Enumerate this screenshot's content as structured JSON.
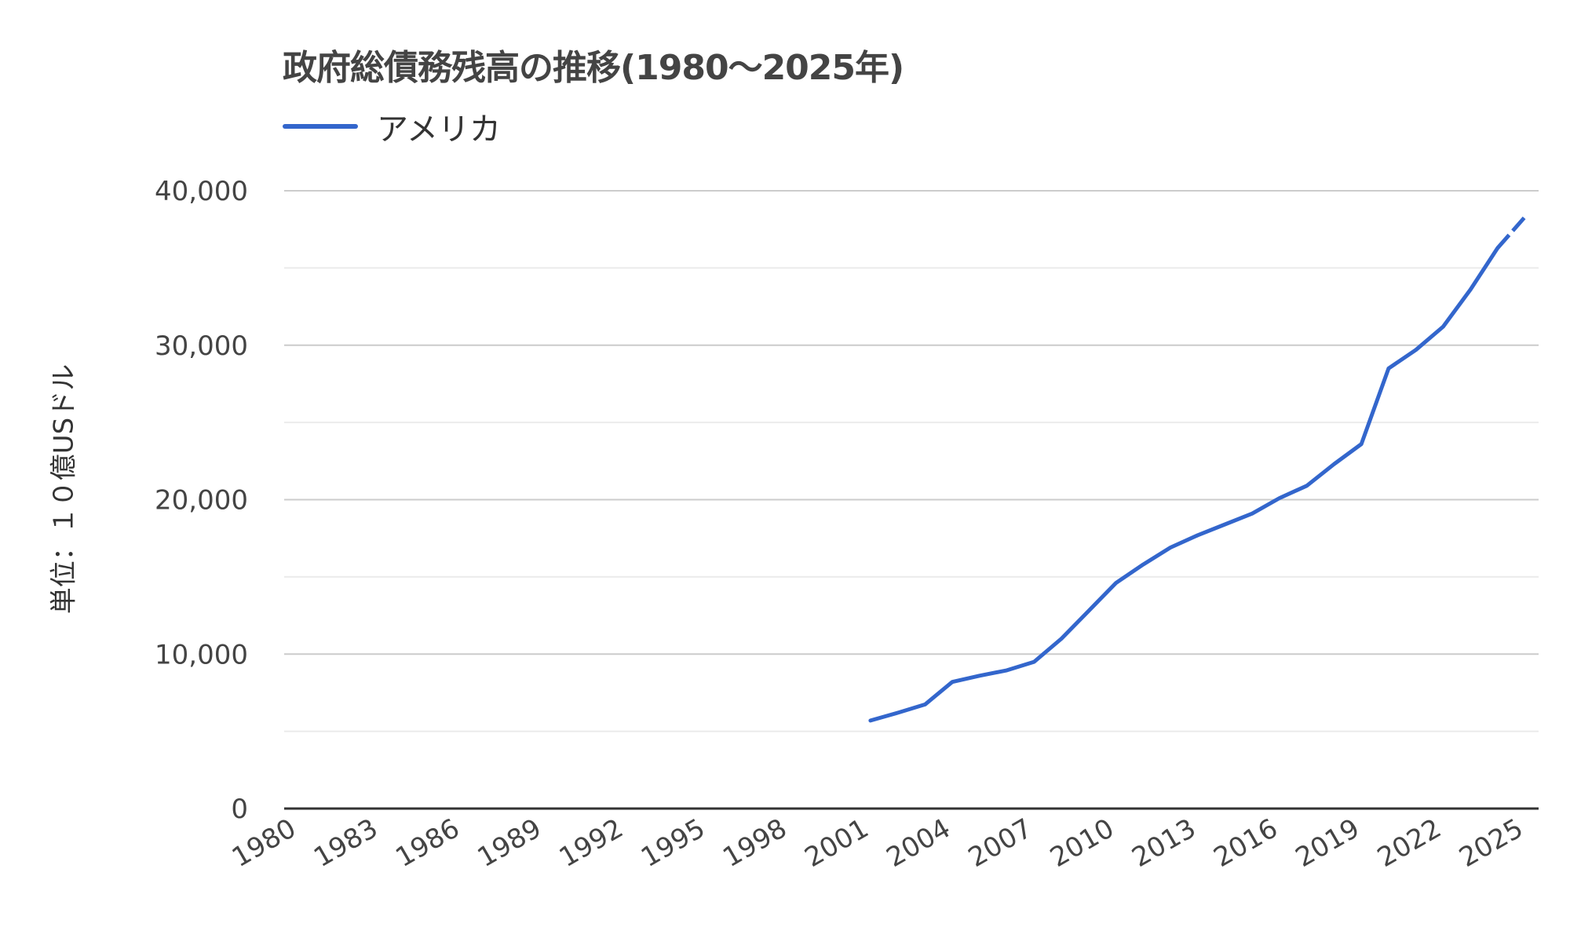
{
  "chart": {
    "title": "政府総債務残高の推移(1980～2025年)",
    "y_axis_title": "単位：１０億USドル",
    "legend": [
      {
        "label": "アメリカ",
        "color": "#3366cc"
      }
    ],
    "colors": {
      "series": "#3366cc",
      "major_grid": "#cccccc",
      "minor_grid": "#ebebeb",
      "baseline": "#333333",
      "tick_text": "#444444"
    }
  },
  "chart_data": {
    "type": "line",
    "title": "政府総債務残高の推移(1980～2025年)",
    "xlabel": "",
    "ylabel": "単位：１０億USドル",
    "ylim": [
      0,
      40000
    ],
    "y_ticks": [
      0,
      10000,
      20000,
      30000,
      40000
    ],
    "y_tick_labels": [
      "0",
      "10,000",
      "20,000",
      "30,000",
      "40,000"
    ],
    "minor_gridlines": [
      5000,
      15000,
      25000,
      35000
    ],
    "x_tick_labels": [
      "1980",
      "1983",
      "1986",
      "1989",
      "1992",
      "1995",
      "1998",
      "2001",
      "2004",
      "2007",
      "2010",
      "2013",
      "2016",
      "2019",
      "2022",
      "2025"
    ],
    "legend_position": "top",
    "grid": true,
    "categories": [
      1980,
      1981,
      1982,
      1983,
      1984,
      1985,
      1986,
      1987,
      1988,
      1989,
      1990,
      1991,
      1992,
      1993,
      1994,
      1995,
      1996,
      1997,
      1998,
      1999,
      2000,
      2001,
      2002,
      2003,
      2004,
      2005,
      2006,
      2007,
      2008,
      2009,
      2010,
      2011,
      2012,
      2013,
      2014,
      2015,
      2016,
      2017,
      2018,
      2019,
      2020,
      2021,
      2022,
      2023,
      2024,
      2025
    ],
    "series": [
      {
        "name": "アメリカ",
        "color": "#3366cc",
        "values": [
          null,
          null,
          null,
          null,
          null,
          null,
          null,
          null,
          null,
          null,
          null,
          null,
          null,
          null,
          null,
          null,
          null,
          null,
          null,
          null,
          null,
          5700,
          6200,
          6740,
          8200,
          8600,
          8950,
          9500,
          11000,
          12800,
          14600,
          15800,
          16900,
          17700,
          18400,
          19100,
          20100,
          20900,
          22300,
          23600,
          28500,
          29700,
          31200,
          33600,
          36300,
          38300
        ],
        "estimate_from": 2024
      }
    ]
  }
}
